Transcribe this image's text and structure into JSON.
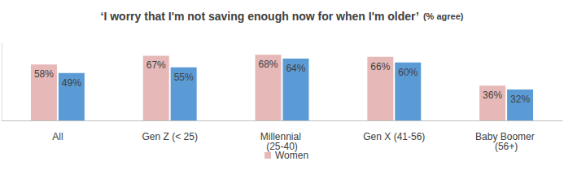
{
  "chart_data": {
    "type": "bar",
    "title": "‘I worry that I'm not saving enough now for when I'm older’",
    "subtitle": "(% agree)",
    "categories": [
      "All",
      "Gen Z (< 25)",
      "Millennial (25-40)",
      "Gen X (41-56)",
      "Baby Boomer (56+)"
    ],
    "series": [
      {
        "name": "Women",
        "color": "#e6b9b8",
        "values": [
          58,
          67,
          68,
          66,
          36
        ],
        "value_labels": [
          "58%",
          "67%",
          "68%",
          "66%",
          "36%"
        ]
      },
      {
        "color": "#5b9bd5",
        "values": [
          49,
          55,
          64,
          60,
          32
        ],
        "value_labels": [
          "49%",
          "55%",
          "64%",
          "60%",
          "32%"
        ]
      }
    ],
    "ylim": [
      0,
      80
    ],
    "grid": false,
    "legend": "bottom",
    "data_labels": true,
    "tick_labels": "x"
  }
}
